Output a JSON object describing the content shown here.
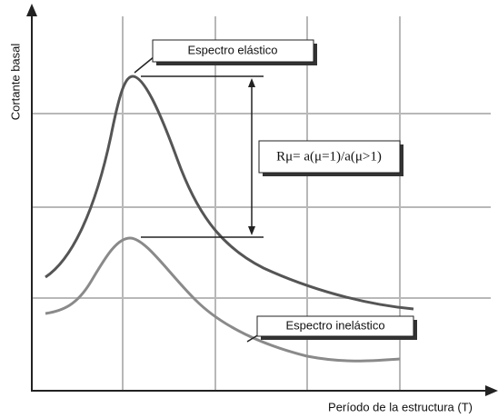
{
  "axes": {
    "y_label": "Cortante basal",
    "x_label": "Período de la estructura (T)"
  },
  "labels": {
    "elastic": "Espectro elástico",
    "inelastic": "Espectro inelástico",
    "ratio": "Rμ= a(μ=1)/a(μ>1)"
  }
}
